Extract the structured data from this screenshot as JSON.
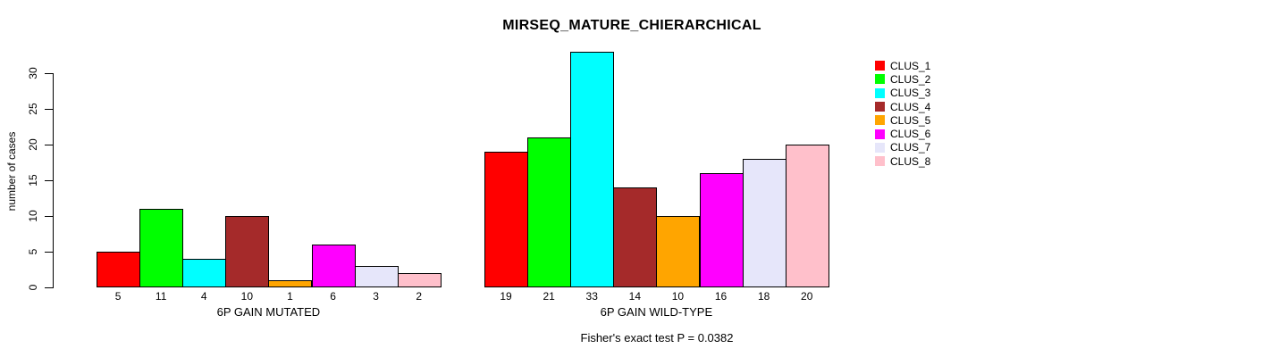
{
  "chart_data": {
    "type": "bar",
    "title": "MIRSEQ_MATURE_CHIERARCHICAL",
    "ylabel": "number of cases",
    "footer": "Fisher's exact test P = 0.0382",
    "ylim": [
      0,
      30
    ],
    "yticks": [
      0,
      5,
      10,
      15,
      20,
      25,
      30
    ],
    "grid": false,
    "legend_position": "right",
    "bar_value_labels_shown": true,
    "categories": [
      "6P GAIN MUTATED",
      "6P GAIN WILD-TYPE"
    ],
    "series": [
      {
        "name": "CLUS_1",
        "color": "#FF0000",
        "values": [
          5,
          19
        ]
      },
      {
        "name": "CLUS_2",
        "color": "#00FF00",
        "values": [
          11,
          21
        ]
      },
      {
        "name": "CLUS_3",
        "color": "#00FFFF",
        "values": [
          4,
          33
        ]
      },
      {
        "name": "CLUS_4",
        "color": "#A52A2A",
        "values": [
          10,
          14
        ]
      },
      {
        "name": "CLUS_5",
        "color": "#FFA500",
        "values": [
          1,
          10
        ]
      },
      {
        "name": "CLUS_6",
        "color": "#FF00FF",
        "values": [
          6,
          16
        ]
      },
      {
        "name": "CLUS_7",
        "color": "#E6E6FA",
        "values": [
          3,
          18
        ]
      },
      {
        "name": "CLUS_8",
        "color": "#FFC0CB",
        "values": [
          2,
          20
        ]
      }
    ]
  }
}
